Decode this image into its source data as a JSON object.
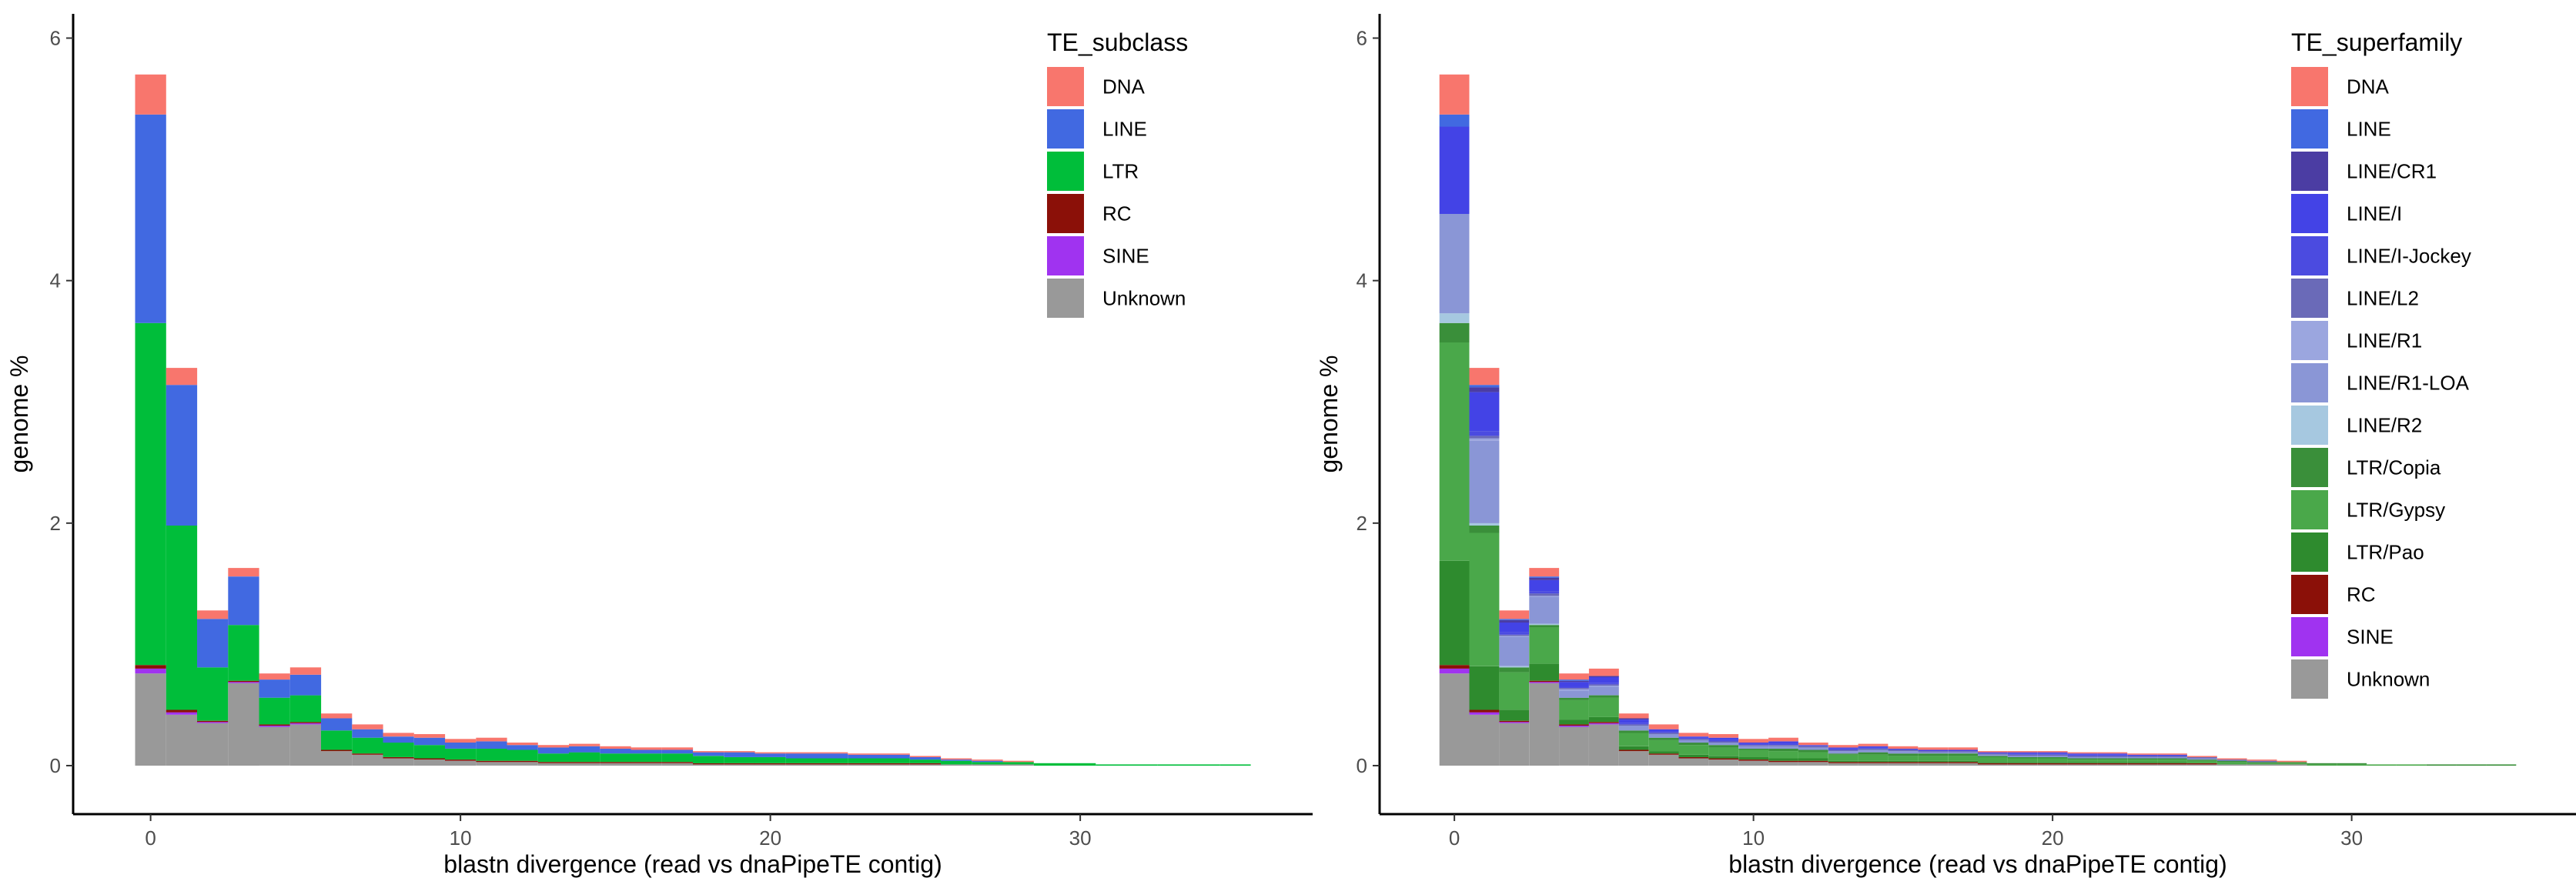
{
  "chart_data": [
    {
      "type": "bar",
      "stacked": true,
      "xlabel": "blastn divergence (read vs dnaPipeTE contig)",
      "ylabel": "genome %",
      "xlim": [
        -2.5,
        37.5
      ],
      "ylim": [
        -0.4,
        6.2
      ],
      "xticks": [
        0,
        10,
        20,
        30
      ],
      "yticks": [
        0,
        2,
        4,
        6
      ],
      "legend_title": "TE_subclass",
      "legend_position": "top-right",
      "bin_centers": [
        0,
        1,
        2,
        3,
        4,
        5,
        6,
        7,
        8,
        9,
        10,
        11,
        12,
        13,
        14,
        15,
        16,
        17,
        18,
        19,
        20,
        21,
        22,
        23,
        24,
        25,
        26,
        27,
        28,
        29,
        30,
        31,
        32,
        33,
        34,
        35
      ],
      "series": [
        {
          "name": "Unknown",
          "color": "#999999",
          "values": [
            0.76,
            0.42,
            0.35,
            0.68,
            0.32,
            0.34,
            0.12,
            0.09,
            0.06,
            0.05,
            0.04,
            0.03,
            0.03,
            0.02,
            0.02,
            0.02,
            0.02,
            0.02,
            0.01,
            0.01,
            0.01,
            0.01,
            0.01,
            0.01,
            0.01,
            0.01,
            0.01,
            0.01,
            0.01,
            0,
            0,
            0,
            0,
            0,
            0,
            0
          ]
        },
        {
          "name": "SINE",
          "color": "#A033F0",
          "values": [
            0.04,
            0.02,
            0.01,
            0.01,
            0.01,
            0.01,
            0,
            0,
            0,
            0,
            0,
            0,
            0,
            0,
            0,
            0,
            0,
            0,
            0,
            0,
            0,
            0,
            0,
            0,
            0,
            0,
            0,
            0,
            0,
            0,
            0,
            0,
            0,
            0,
            0,
            0
          ]
        },
        {
          "name": "RC",
          "color": "#8B1008",
          "values": [
            0.03,
            0.02,
            0.01,
            0.01,
            0.01,
            0.01,
            0.01,
            0.01,
            0.01,
            0.01,
            0.01,
            0.01,
            0.01,
            0.01,
            0.01,
            0.01,
            0.01,
            0.01,
            0.01,
            0.01,
            0.01,
            0.01,
            0.01,
            0.01,
            0.01,
            0.01,
            0,
            0,
            0,
            0,
            0,
            0,
            0,
            0,
            0,
            0
          ]
        },
        {
          "name": "LTR",
          "color": "#00BE3A",
          "values": [
            2.82,
            1.52,
            0.44,
            0.46,
            0.22,
            0.22,
            0.16,
            0.13,
            0.12,
            0.11,
            0.09,
            0.1,
            0.09,
            0.07,
            0.08,
            0.07,
            0.07,
            0.07,
            0.06,
            0.05,
            0.05,
            0.04,
            0.04,
            0.04,
            0.04,
            0.03,
            0.03,
            0.02,
            0.02,
            0.02,
            0.02,
            0.01,
            0.01,
            0.01,
            0.01,
            0.01
          ]
        },
        {
          "name": "LINE",
          "color": "#4169E1",
          "values": [
            1.72,
            1.16,
            0.4,
            0.4,
            0.15,
            0.17,
            0.1,
            0.07,
            0.05,
            0.06,
            0.05,
            0.06,
            0.04,
            0.05,
            0.05,
            0.04,
            0.03,
            0.03,
            0.03,
            0.04,
            0.03,
            0.04,
            0.04,
            0.03,
            0.03,
            0.02,
            0.01,
            0.01,
            0,
            0,
            0,
            0,
            0,
            0,
            0,
            0
          ]
        },
        {
          "name": "DNA",
          "color": "#F8766D",
          "values": [
            0.33,
            0.14,
            0.07,
            0.07,
            0.05,
            0.06,
            0.04,
            0.04,
            0.03,
            0.03,
            0.03,
            0.03,
            0.02,
            0.02,
            0.02,
            0.02,
            0.02,
            0.02,
            0.01,
            0.01,
            0.01,
            0.01,
            0.01,
            0.01,
            0.01,
            0.01,
            0.01,
            0.01,
            0.01,
            0,
            0,
            0,
            0,
            0,
            0,
            0
          ]
        }
      ]
    },
    {
      "type": "bar",
      "stacked": true,
      "xlabel": "blastn divergence (read vs dnaPipeTE contig)",
      "ylabel": "genome %",
      "xlim": [
        -2.5,
        37.5
      ],
      "ylim": [
        -0.4,
        6.2
      ],
      "xticks": [
        0,
        10,
        20,
        30
      ],
      "yticks": [
        0,
        2,
        4,
        6
      ],
      "legend_title": "TE_superfamily",
      "legend_position": "top-right",
      "bin_centers": [
        0,
        1,
        2,
        3,
        4,
        5,
        6,
        7,
        8,
        9,
        10,
        11,
        12,
        13,
        14,
        15,
        16,
        17,
        18,
        19,
        20,
        21,
        22,
        23,
        24,
        25,
        26,
        27,
        28,
        29,
        30,
        31,
        32,
        33,
        34,
        35
      ],
      "series": [
        {
          "name": "Unknown",
          "color": "#999999",
          "values": [
            0.76,
            0.42,
            0.35,
            0.68,
            0.32,
            0.34,
            0.12,
            0.09,
            0.06,
            0.05,
            0.04,
            0.03,
            0.03,
            0.02,
            0.02,
            0.02,
            0.02,
            0.02,
            0.01,
            0.01,
            0.01,
            0.01,
            0.01,
            0.01,
            0.01,
            0.01,
            0.01,
            0.01,
            0.01,
            0,
            0,
            0,
            0,
            0,
            0,
            0
          ]
        },
        {
          "name": "SINE",
          "color": "#A033F0",
          "values": [
            0.04,
            0.02,
            0.01,
            0.01,
            0.01,
            0.01,
            0,
            0,
            0,
            0,
            0,
            0,
            0,
            0,
            0,
            0,
            0,
            0,
            0,
            0,
            0,
            0,
            0,
            0,
            0,
            0,
            0,
            0,
            0,
            0,
            0,
            0,
            0,
            0,
            0,
            0
          ]
        },
        {
          "name": "RC",
          "color": "#8B1008",
          "values": [
            0.03,
            0.02,
            0.01,
            0.01,
            0.01,
            0.01,
            0.01,
            0.01,
            0.01,
            0.01,
            0.01,
            0.01,
            0.01,
            0.01,
            0.01,
            0.01,
            0.01,
            0.01,
            0.01,
            0.01,
            0.01,
            0.01,
            0.01,
            0.01,
            0.01,
            0.01,
            0,
            0,
            0,
            0,
            0,
            0,
            0,
            0,
            0,
            0
          ]
        },
        {
          "name": "LTR/Pao",
          "color": "#2E8B2E",
          "values": [
            0.86,
            0.36,
            0.09,
            0.14,
            0.04,
            0.04,
            0.03,
            0.02,
            0.02,
            0.02,
            0.02,
            0.02,
            0.02,
            0.01,
            0.01,
            0.01,
            0.01,
            0.01,
            0.01,
            0.01,
            0.01,
            0.01,
            0.01,
            0.01,
            0.01,
            0,
            0,
            0,
            0,
            0,
            0,
            0,
            0,
            0,
            0,
            0
          ]
        },
        {
          "name": "LTR/Gypsy",
          "color": "#4AA84A",
          "values": [
            1.8,
            1.1,
            0.31,
            0.3,
            0.16,
            0.16,
            0.11,
            0.09,
            0.08,
            0.07,
            0.06,
            0.06,
            0.05,
            0.05,
            0.05,
            0.04,
            0.04,
            0.04,
            0.04,
            0.03,
            0.03,
            0.02,
            0.02,
            0.02,
            0.02,
            0.02,
            0.02,
            0.01,
            0.01,
            0.01,
            0.01,
            0.01,
            0.01,
            0,
            0,
            0
          ]
        },
        {
          "name": "LTR/Copia",
          "color": "#3A8F3A",
          "values": [
            0.16,
            0.06,
            0.04,
            0.02,
            0.02,
            0.02,
            0.02,
            0.02,
            0.02,
            0.02,
            0.01,
            0.02,
            0.02,
            0.01,
            0.02,
            0.02,
            0.02,
            0.02,
            0.01,
            0.01,
            0.01,
            0.01,
            0.01,
            0.01,
            0.01,
            0.01,
            0.01,
            0.01,
            0.01,
            0.01,
            0.01,
            0,
            0,
            0.01,
            0.01,
            0.01
          ]
        },
        {
          "name": "LINE/R2",
          "color": "#A6C8E0",
          "values": [
            0.08,
            0.02,
            0.01,
            0.01,
            0,
            0,
            0,
            0,
            0,
            0,
            0,
            0,
            0,
            0,
            0,
            0,
            0,
            0,
            0,
            0,
            0,
            0,
            0,
            0,
            0,
            0,
            0,
            0,
            0,
            0,
            0,
            0,
            0,
            0,
            0,
            0
          ]
        },
        {
          "name": "LINE/R1-LOA",
          "color": "#8A96D6",
          "values": [
            0.82,
            0.68,
            0.24,
            0.22,
            0.06,
            0.07,
            0.04,
            0.03,
            0.02,
            0.02,
            0.02,
            0.02,
            0.02,
            0.02,
            0.02,
            0.02,
            0.01,
            0.01,
            0.01,
            0.01,
            0.01,
            0.01,
            0.01,
            0.01,
            0.01,
            0.01,
            0,
            0,
            0,
            0,
            0,
            0,
            0,
            0,
            0,
            0
          ]
        },
        {
          "name": "LINE/R1",
          "color": "#9BA6DF",
          "values": [
            0,
            0.02,
            0.01,
            0.01,
            0.01,
            0.01,
            0,
            0,
            0,
            0,
            0,
            0,
            0,
            0,
            0,
            0,
            0,
            0,
            0,
            0,
            0,
            0,
            0,
            0,
            0,
            0,
            0,
            0,
            0,
            0,
            0,
            0,
            0,
            0,
            0,
            0
          ]
        },
        {
          "name": "LINE/L2",
          "color": "#6A6AB8",
          "values": [
            0,
            0.02,
            0.01,
            0.02,
            0.01,
            0.01,
            0.01,
            0.01,
            0.01,
            0.01,
            0.01,
            0.01,
            0.01,
            0.01,
            0.01,
            0.01,
            0.01,
            0.01,
            0.01,
            0.01,
            0.01,
            0.01,
            0.01,
            0.01,
            0.01,
            0.01,
            0.01,
            0.01,
            0,
            0,
            0,
            0,
            0,
            0,
            0,
            0
          ]
        },
        {
          "name": "LINE/I-Jockey",
          "color": "#4B4BE0",
          "values": [
            0,
            0.04,
            0.02,
            0.02,
            0.01,
            0.01,
            0.01,
            0.01,
            0.01,
            0.01,
            0.01,
            0.01,
            0.01,
            0.01,
            0.01,
            0.01,
            0,
            0,
            0,
            0.01,
            0.01,
            0.01,
            0.01,
            0,
            0,
            0,
            0,
            0,
            0,
            0,
            0,
            0,
            0,
            0,
            0,
            0
          ]
        },
        {
          "name": "LINE/I",
          "color": "#4343E6",
          "values": [
            0.72,
            0.32,
            0.08,
            0.09,
            0.04,
            0.05,
            0.03,
            0.02,
            0.01,
            0.02,
            0.01,
            0.02,
            0,
            0.01,
            0.01,
            0,
            0.01,
            0.01,
            0.01,
            0.01,
            0.01,
            0.01,
            0.01,
            0.01,
            0.01,
            0,
            0,
            0,
            0,
            0,
            0,
            0,
            0,
            0,
            0,
            0
          ]
        },
        {
          "name": "LINE/CR1",
          "color": "#4B3DA3",
          "values": [
            0,
            0.04,
            0.02,
            0.02,
            0.01,
            0.01,
            0.01,
            0,
            0,
            0,
            0,
            0,
            0,
            0,
            0,
            0,
            0,
            0,
            0,
            0,
            0,
            0,
            0,
            0,
            0,
            0,
            0,
            0,
            0,
            0,
            0,
            0,
            0,
            0,
            0,
            0
          ]
        },
        {
          "name": "LINE",
          "color": "#4169E1",
          "values": [
            0.1,
            0.02,
            0.01,
            0.01,
            0.01,
            0,
            0,
            0,
            0,
            0,
            0,
            0,
            0,
            0,
            0,
            0,
            0,
            0,
            0,
            0,
            0,
            0,
            0,
            0,
            0,
            0,
            0,
            0,
            0,
            0,
            0,
            0,
            0,
            0,
            0,
            0
          ]
        },
        {
          "name": "DNA",
          "color": "#F8766D",
          "values": [
            0.33,
            0.14,
            0.07,
            0.07,
            0.05,
            0.06,
            0.04,
            0.04,
            0.03,
            0.03,
            0.03,
            0.03,
            0.02,
            0.02,
            0.02,
            0.02,
            0.02,
            0.02,
            0.01,
            0.01,
            0.01,
            0.01,
            0.01,
            0.01,
            0.01,
            0.01,
            0.01,
            0.01,
            0.01,
            0,
            0,
            0,
            0,
            0,
            0,
            0
          ]
        }
      ],
      "legend_order": [
        "DNA",
        "LINE",
        "LINE/CR1",
        "LINE/I",
        "LINE/I-Jockey",
        "LINE/L2",
        "LINE/R1",
        "LINE/R1-LOA",
        "LINE/R2",
        "LTR/Copia",
        "LTR/Gypsy",
        "LTR/Pao",
        "RC",
        "SINE",
        "Unknown"
      ]
    }
  ]
}
